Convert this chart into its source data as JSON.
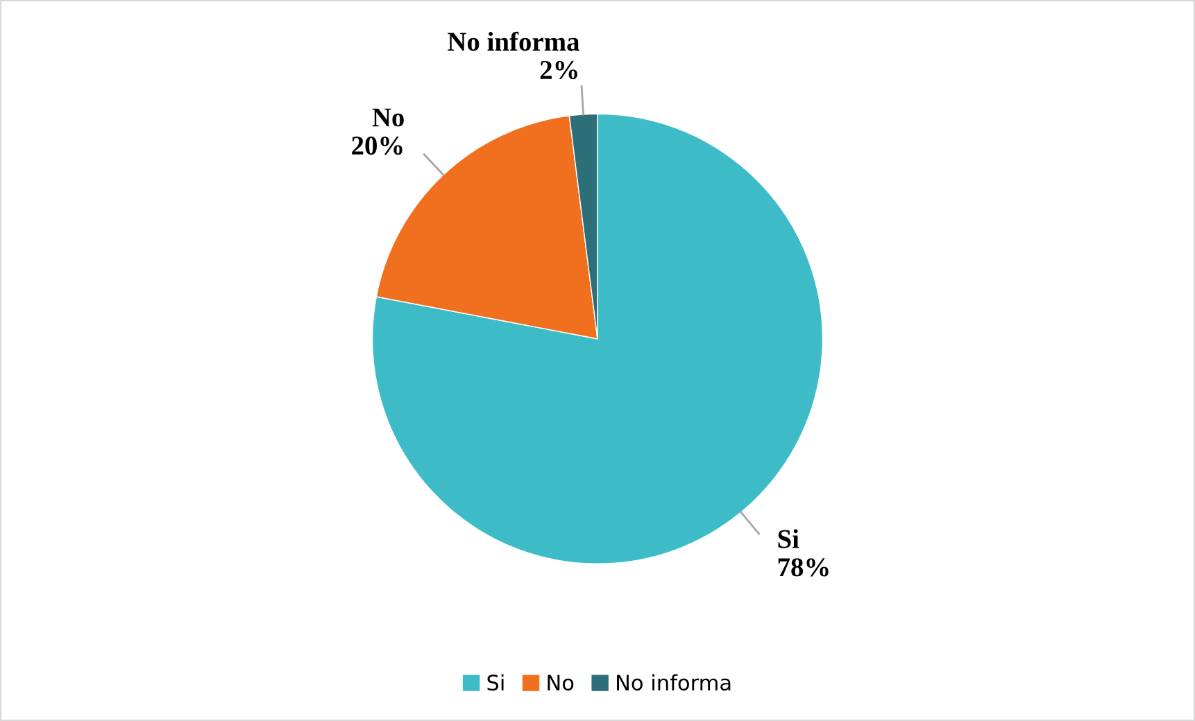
{
  "chart_data": {
    "type": "pie",
    "categories": [
      "Si",
      "No",
      "No informa"
    ],
    "values": [
      78,
      20,
      2
    ],
    "value_labels": [
      "78%",
      "20%",
      "2%"
    ],
    "colors": [
      "#3dbcc8",
      "#f07020",
      "#2d6f78"
    ],
    "legend": "bottom"
  }
}
